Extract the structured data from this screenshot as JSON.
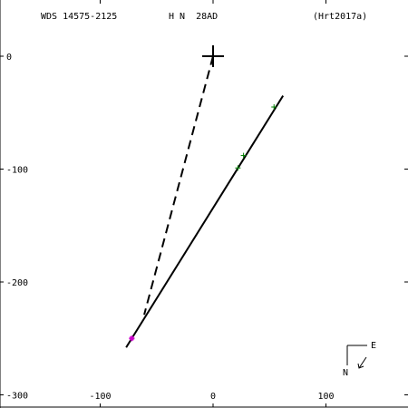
{
  "header": {
    "wds_id": "WDS 14575-2125",
    "discoverer": "H N  28AD",
    "reference": "(Hrt2017a)"
  },
  "compass": {
    "east_label": "E",
    "north_label": "N"
  },
  "colors": {
    "primary_star": "#000000",
    "orbit": "#000000",
    "observations": "#008000",
    "first_obs": "#cc00cc",
    "residual": "#cc0000"
  },
  "chart_data": {
    "type": "scatter",
    "title": "",
    "xlabel": "",
    "ylabel": "",
    "xlim": [
      -190,
      175
    ],
    "ylim": [
      -310,
      50
    ],
    "x_ticks": [
      -100,
      0,
      100
    ],
    "x_tick_labels": [
      "-100",
      "0",
      "100"
    ],
    "y_ticks": [
      0,
      -100,
      -200,
      -300
    ],
    "y_tick_labels": [
      "0",
      "-100",
      "-200",
      "-300"
    ],
    "grid": false,
    "primary": {
      "x": 0,
      "y": 0,
      "marker": "plus"
    },
    "orbit_line": {
      "x": [
        -77,
        62
      ],
      "y": [
        -258,
        -35
      ]
    },
    "node_line": {
      "x": [
        0,
        -61
      ],
      "y": [
        0,
        -229
      ],
      "style": "dashed"
    },
    "observations": [
      {
        "x": 54,
        "y": -45
      },
      {
        "x": 27,
        "y": -88
      },
      {
        "x": 22,
        "y": -99
      }
    ],
    "first_observation": {
      "x": -72,
      "y": -250
    }
  }
}
